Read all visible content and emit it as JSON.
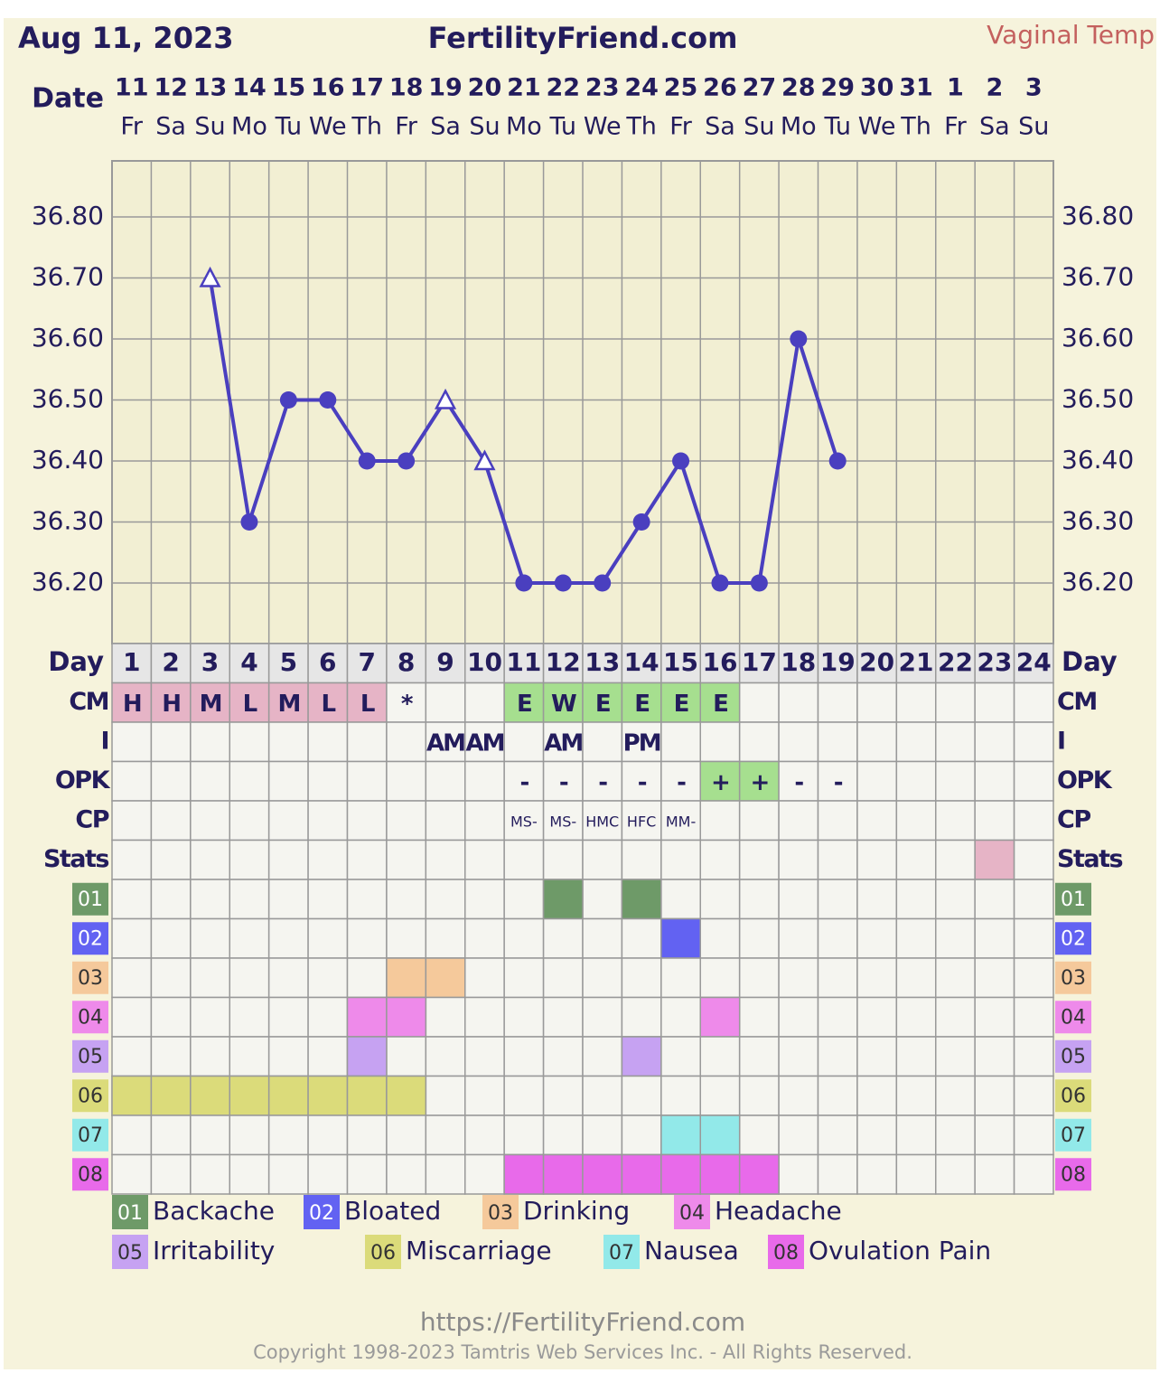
{
  "chart_data": {
    "type": "line",
    "date_label": "Aug 11, 2023",
    "title": "FertilityFriend.com",
    "subtitle": "Vaginal Temp",
    "date_row_label": "Date",
    "dates": [
      "11",
      "12",
      "13",
      "14",
      "15",
      "16",
      "17",
      "18",
      "19",
      "20",
      "21",
      "22",
      "23",
      "24",
      "25",
      "26",
      "27",
      "28",
      "29",
      "30",
      "31",
      "1",
      "2",
      "3"
    ],
    "weekdays": [
      "Fr",
      "Sa",
      "Su",
      "Mo",
      "Tu",
      "We",
      "Th",
      "Fr",
      "Sa",
      "Su",
      "Mo",
      "Tu",
      "We",
      "Th",
      "Fr",
      "Sa",
      "Su",
      "Mo",
      "Tu",
      "We",
      "Th",
      "Fr",
      "Sa",
      "Su"
    ],
    "day_row_label": "Day",
    "cycle_days": [
      1,
      2,
      3,
      4,
      5,
      6,
      7,
      8,
      9,
      10,
      11,
      12,
      13,
      14,
      15,
      16,
      17,
      18,
      19,
      20,
      21,
      22,
      23,
      24
    ],
    "series": [
      {
        "name": "Temperature",
        "color": "#4a3fbf",
        "values": [
          null,
          null,
          36.7,
          36.3,
          36.5,
          36.5,
          36.4,
          36.4,
          36.5,
          36.4,
          36.2,
          36.2,
          36.2,
          36.3,
          36.4,
          36.2,
          36.2,
          36.6,
          36.4,
          null,
          null,
          null,
          null,
          null
        ],
        "markers": [
          null,
          null,
          "triangle",
          "circle",
          "circle",
          "circle",
          "circle",
          "circle",
          "triangle",
          "triangle",
          "circle",
          "circle",
          "circle",
          "circle",
          "circle",
          "circle",
          "circle",
          "circle",
          "circle",
          null,
          null,
          null,
          null,
          null
        ]
      }
    ],
    "ylim": [
      36.1,
      36.9
    ],
    "yticks": [
      {
        "value": 36.2,
        "label": "36.20"
      },
      {
        "value": 36.3,
        "label": "36.30"
      },
      {
        "value": 36.4,
        "label": "36.40"
      },
      {
        "value": 36.5,
        "label": "36.50"
      },
      {
        "value": 36.6,
        "label": "36.60"
      },
      {
        "value": 36.7,
        "label": "36.70"
      },
      {
        "value": 36.8,
        "label": "36.80"
      }
    ],
    "grid": true,
    "rows": [
      {
        "label": "CM",
        "values": [
          "H",
          "H",
          "M",
          "L",
          "M",
          "L",
          "L",
          "*",
          null,
          null,
          "E",
          "W",
          "E",
          "E",
          "E",
          "E",
          null,
          null,
          null,
          null,
          null,
          null,
          null,
          null
        ],
        "colors": [
          "#e6b4c6",
          "#e6b4c6",
          "#e6b4c6",
          "#e6b4c6",
          "#e6b4c6",
          "#e6b4c6",
          "#e6b4c6",
          null,
          null,
          null,
          "#a6df8f",
          "#a6df8f",
          "#a6df8f",
          "#a6df8f",
          "#a6df8f",
          "#a6df8f",
          null,
          null,
          null,
          null,
          null,
          null,
          null,
          null
        ]
      },
      {
        "label": "I",
        "values": [
          null,
          null,
          null,
          null,
          null,
          null,
          null,
          null,
          "AM",
          "AM",
          null,
          "AM",
          null,
          "PM",
          null,
          null,
          null,
          null,
          null,
          null,
          null,
          null,
          null,
          null
        ]
      },
      {
        "label": "OPK",
        "values": [
          null,
          null,
          null,
          null,
          null,
          null,
          null,
          null,
          null,
          null,
          "-",
          "-",
          "-",
          "-",
          "-",
          "+",
          "+",
          "-",
          "-",
          null,
          null,
          null,
          null,
          null
        ],
        "colors": [
          null,
          null,
          null,
          null,
          null,
          null,
          null,
          null,
          null,
          null,
          null,
          null,
          null,
          null,
          null,
          "#a6df8f",
          "#a6df8f",
          null,
          null,
          null,
          null,
          null,
          null,
          null
        ]
      },
      {
        "label": "CP",
        "values": [
          null,
          null,
          null,
          null,
          null,
          null,
          null,
          null,
          null,
          null,
          "MS-",
          "MS-",
          "HMC",
          "HFC",
          "MM-",
          null,
          null,
          null,
          null,
          null,
          null,
          null,
          null,
          null
        ]
      },
      {
        "label": "Stats",
        "colors": [
          null,
          null,
          null,
          null,
          null,
          null,
          null,
          null,
          null,
          null,
          null,
          null,
          null,
          null,
          null,
          null,
          null,
          null,
          null,
          null,
          null,
          null,
          "#e6b4c6",
          null
        ]
      }
    ],
    "symptoms": [
      {
        "code": "01",
        "name": "Backache",
        "color": "#6e9a68",
        "days": [
          12,
          14
        ]
      },
      {
        "code": "02",
        "name": "Bloated",
        "color": "#6262f2",
        "days": [
          15
        ]
      },
      {
        "code": "03",
        "name": "Drinking",
        "color": "#f5c99b",
        "days": [
          8,
          9
        ]
      },
      {
        "code": "04",
        "name": "Headache",
        "color": "#ee8aea",
        "days": [
          7,
          8,
          16
        ]
      },
      {
        "code": "05",
        "name": "Irritability",
        "color": "#c6a2f2",
        "days": [
          7,
          14
        ]
      },
      {
        "code": "06",
        "name": "Miscarriage",
        "color": "#dbdb7a",
        "days": [
          1,
          2,
          3,
          4,
          5,
          6,
          7,
          8
        ]
      },
      {
        "code": "07",
        "name": "Nausea",
        "color": "#92e9e9",
        "days": [
          15,
          16
        ]
      },
      {
        "code": "08",
        "name": "Ovulation Pain",
        "color": "#e86aea",
        "days": [
          11,
          12,
          13,
          14,
          15,
          16,
          17
        ]
      }
    ],
    "footer_url": "https://FertilityFriend.com",
    "copyright": "Copyright 1998-2023 Tamtris Web Services Inc. - All Rights Reserved."
  }
}
